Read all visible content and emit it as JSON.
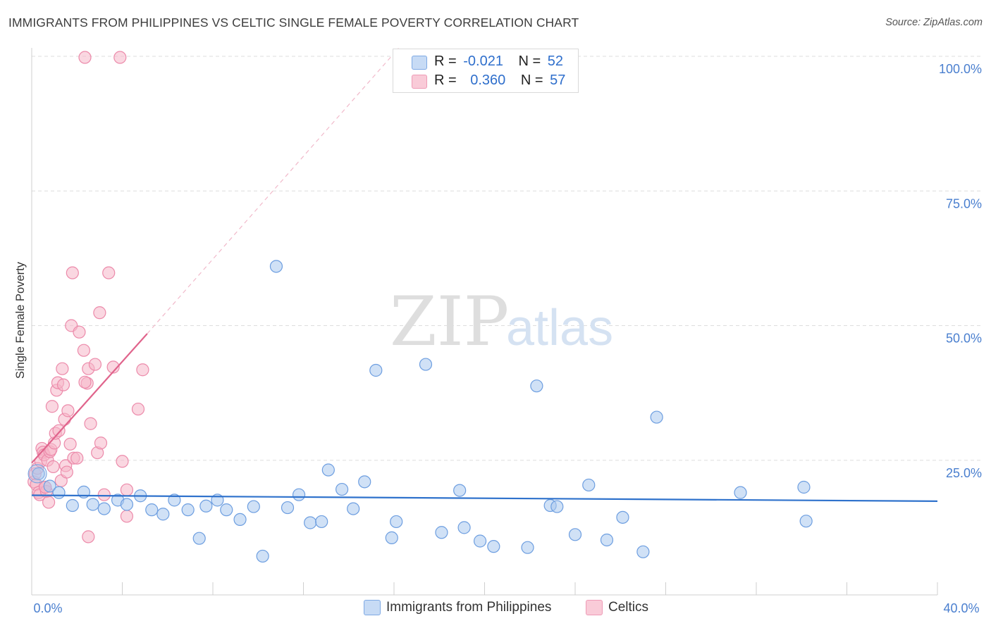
{
  "title": "IMMIGRANTS FROM PHILIPPINES VS CELTIC SINGLE FEMALE POVERTY CORRELATION CHART",
  "source": "Source: ZipAtlas.com",
  "watermark": {
    "part1": "ZIP",
    "part2": "atlas"
  },
  "legend": {
    "rows": [
      {
        "r_label": "R =",
        "r_value": "-0.021",
        "n_label": "N =",
        "n_value": "52"
      },
      {
        "r_label": "R =",
        "r_value": "0.360",
        "n_label": "N =",
        "n_value": "57"
      }
    ]
  },
  "colors": {
    "blue_fill": "#a9c8ef",
    "blue_stroke": "#6d9ee0",
    "blue_line": "#2f72cc",
    "pink_fill": "#f6b7c9",
    "pink_stroke": "#ec8aaa",
    "pink_line": "#e0648c",
    "grid": "#dddddd",
    "tick_text": "#4a7fcf"
  },
  "chart_data": {
    "type": "scatter",
    "title": "IMMIGRANTS FROM PHILIPPINES VS CELTIC SINGLE FEMALE POVERTY CORRELATION CHART",
    "xlabel": "",
    "ylabel": "Single Female Poverty",
    "xlim": [
      0,
      40
    ],
    "ylim": [
      0,
      100
    ],
    "x_tick_labels": [
      "0.0%",
      "40.0%"
    ],
    "y_ticks": [
      25,
      50,
      75,
      100
    ],
    "y_tick_labels": [
      "25.0%",
      "50.0%",
      "75.0%",
      "100.0%"
    ],
    "series": [
      {
        "name": "Immigrants from Philippines",
        "color": "#a9c8ef",
        "r": -0.021,
        "n": 52,
        "trend": {
          "x0": 0,
          "y0": 18.5,
          "x1": 40,
          "y1": 17.4
        },
        "points": [
          [
            0.3,
            22.5
          ],
          [
            0.8,
            20.2
          ],
          [
            1.2,
            19.0
          ],
          [
            1.8,
            16.6
          ],
          [
            2.3,
            19.1
          ],
          [
            2.7,
            16.8
          ],
          [
            3.2,
            16.0
          ],
          [
            3.8,
            17.6
          ],
          [
            4.2,
            16.8
          ],
          [
            4.8,
            18.4
          ],
          [
            5.3,
            15.8
          ],
          [
            5.8,
            15.0
          ],
          [
            6.3,
            17.6
          ],
          [
            6.9,
            15.8
          ],
          [
            7.4,
            10.5
          ],
          [
            7.7,
            16.5
          ],
          [
            8.2,
            17.6
          ],
          [
            8.6,
            15.8
          ],
          [
            9.2,
            14.0
          ],
          [
            9.8,
            16.4
          ],
          [
            10.2,
            7.2
          ],
          [
            10.8,
            61.0
          ],
          [
            11.3,
            16.2
          ],
          [
            11.8,
            18.6
          ],
          [
            12.3,
            13.4
          ],
          [
            12.8,
            13.6
          ],
          [
            13.1,
            23.2
          ],
          [
            13.7,
            19.6
          ],
          [
            14.2,
            16.0
          ],
          [
            14.7,
            21.0
          ],
          [
            15.2,
            41.7
          ],
          [
            15.9,
            10.6
          ],
          [
            16.1,
            13.6
          ],
          [
            17.4,
            42.8
          ],
          [
            18.1,
            11.6
          ],
          [
            18.9,
            19.4
          ],
          [
            19.1,
            12.5
          ],
          [
            19.8,
            10.0
          ],
          [
            20.4,
            9.0
          ],
          [
            21.9,
            8.8
          ],
          [
            22.3,
            38.8
          ],
          [
            22.9,
            16.6
          ],
          [
            23.2,
            16.4
          ],
          [
            24.0,
            11.2
          ],
          [
            24.6,
            20.4
          ],
          [
            25.4,
            10.2
          ],
          [
            26.1,
            14.4
          ],
          [
            27.0,
            8.0
          ],
          [
            27.6,
            33.0
          ],
          [
            31.3,
            19.0
          ],
          [
            34.1,
            20.0
          ],
          [
            34.2,
            13.7
          ]
        ]
      },
      {
        "name": "Celtics",
        "color": "#f6b7c9",
        "r": 0.36,
        "n": 57,
        "trend": {
          "x0": 0,
          "y0": 24.5,
          "x1": 5.1,
          "y1": 48.5,
          "dash_x1": 16.2,
          "dash_y1": 101.5
        },
        "points": [
          [
            0.1,
            21.0
          ],
          [
            0.15,
            22.5
          ],
          [
            0.2,
            20.5
          ],
          [
            0.25,
            23.5
          ],
          [
            0.3,
            19.0
          ],
          [
            0.35,
            18.6
          ],
          [
            0.4,
            24.8
          ],
          [
            0.45,
            27.2
          ],
          [
            0.5,
            26.5
          ],
          [
            0.55,
            26.0
          ],
          [
            0.6,
            20.0
          ],
          [
            0.65,
            19.2
          ],
          [
            0.7,
            25.0
          ],
          [
            0.75,
            17.2
          ],
          [
            0.8,
            26.6
          ],
          [
            0.85,
            27.0
          ],
          [
            0.9,
            35.0
          ],
          [
            0.95,
            23.8
          ],
          [
            1.0,
            28.2
          ],
          [
            1.05,
            30.0
          ],
          [
            1.1,
            38.0
          ],
          [
            1.15,
            39.4
          ],
          [
            1.2,
            30.5
          ],
          [
            1.3,
            21.2
          ],
          [
            1.35,
            42.0
          ],
          [
            1.4,
            39.0
          ],
          [
            1.45,
            32.6
          ],
          [
            1.5,
            24.0
          ],
          [
            1.55,
            22.8
          ],
          [
            1.6,
            34.2
          ],
          [
            1.7,
            28.0
          ],
          [
            1.75,
            50.0
          ],
          [
            1.8,
            59.8
          ],
          [
            1.85,
            25.4
          ],
          [
            2.1,
            48.8
          ],
          [
            2.3,
            45.4
          ],
          [
            2.5,
            42.0
          ],
          [
            2.45,
            39.3
          ],
          [
            2.5,
            10.8
          ],
          [
            2.6,
            31.8
          ],
          [
            2.8,
            42.8
          ],
          [
            2.9,
            26.4
          ],
          [
            3.0,
            52.4
          ],
          [
            3.05,
            28.2
          ],
          [
            3.2,
            18.6
          ],
          [
            3.4,
            59.8
          ],
          [
            3.6,
            42.3
          ],
          [
            2.35,
            39.5
          ],
          [
            4.0,
            24.8
          ],
          [
            4.2,
            19.5
          ],
          [
            4.2,
            14.6
          ],
          [
            4.7,
            34.5
          ],
          [
            4.9,
            41.8
          ],
          [
            2.35,
            99.8
          ],
          [
            3.9,
            99.8
          ],
          [
            2.0,
            25.4
          ],
          [
            0.6,
            20.0
          ]
        ]
      }
    ]
  }
}
